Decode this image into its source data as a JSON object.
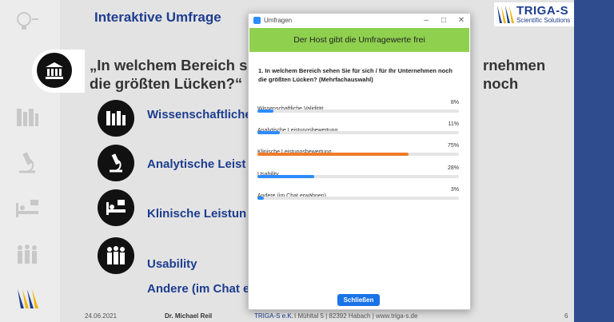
{
  "slide": {
    "title": "Interaktive Umfrage",
    "question_left_line1": "„In welchem Bereich s",
    "question_right_line1": "rnehmen noch",
    "question_line2": "die größten Lücken?“",
    "options": [
      {
        "label": "Wissenschaftliche",
        "icon": "books-icon"
      },
      {
        "label": "Analytische Leist",
        "icon": "microscope-icon"
      },
      {
        "label": "Klinische Leistun",
        "icon": "hospital-bed-icon"
      },
      {
        "label": "Usability",
        "icon": "people-icon"
      },
      {
        "label": "Andere (im Chat e",
        "icon": ""
      }
    ],
    "footer": {
      "date": "24.06.2021",
      "presenter": "Dr. Michael Reil",
      "company": "TRIGA-S e.K.",
      "address": "I Mühltal 5 | 82392 Habach | www.triga-s.de",
      "page": "6"
    }
  },
  "logo": {
    "name": "TRIGA-S",
    "tagline": "Scientific Solutions"
  },
  "dialog": {
    "window_title": "Umfragen",
    "banner": "Der Host gibt die Umfragewerte frei",
    "question": "1. In welchem Bereich sehen Sie für sich / für Ihr Unternehmen noch die größten Lücken? (Mehrfachauswahl)",
    "results": [
      {
        "label": "Wissenschaftliche Validität",
        "percent_text": "8%",
        "value": 8,
        "color": "#2d8cff"
      },
      {
        "label": "Analytische Leistungsbewertung",
        "percent_text": "11%",
        "value": 11,
        "color": "#2d8cff"
      },
      {
        "label": "Klinische Leistungsbewertung",
        "percent_text": "75%",
        "value": 75,
        "color": "#f07b2a"
      },
      {
        "label": "Usability",
        "percent_text": "28%",
        "value": 28,
        "color": "#2d8cff"
      },
      {
        "label": "Andere (im Chat erwähnen)",
        "percent_text": "3%",
        "value": 3,
        "color": "#2d8cff"
      }
    ],
    "close_label": "Schließen"
  }
}
